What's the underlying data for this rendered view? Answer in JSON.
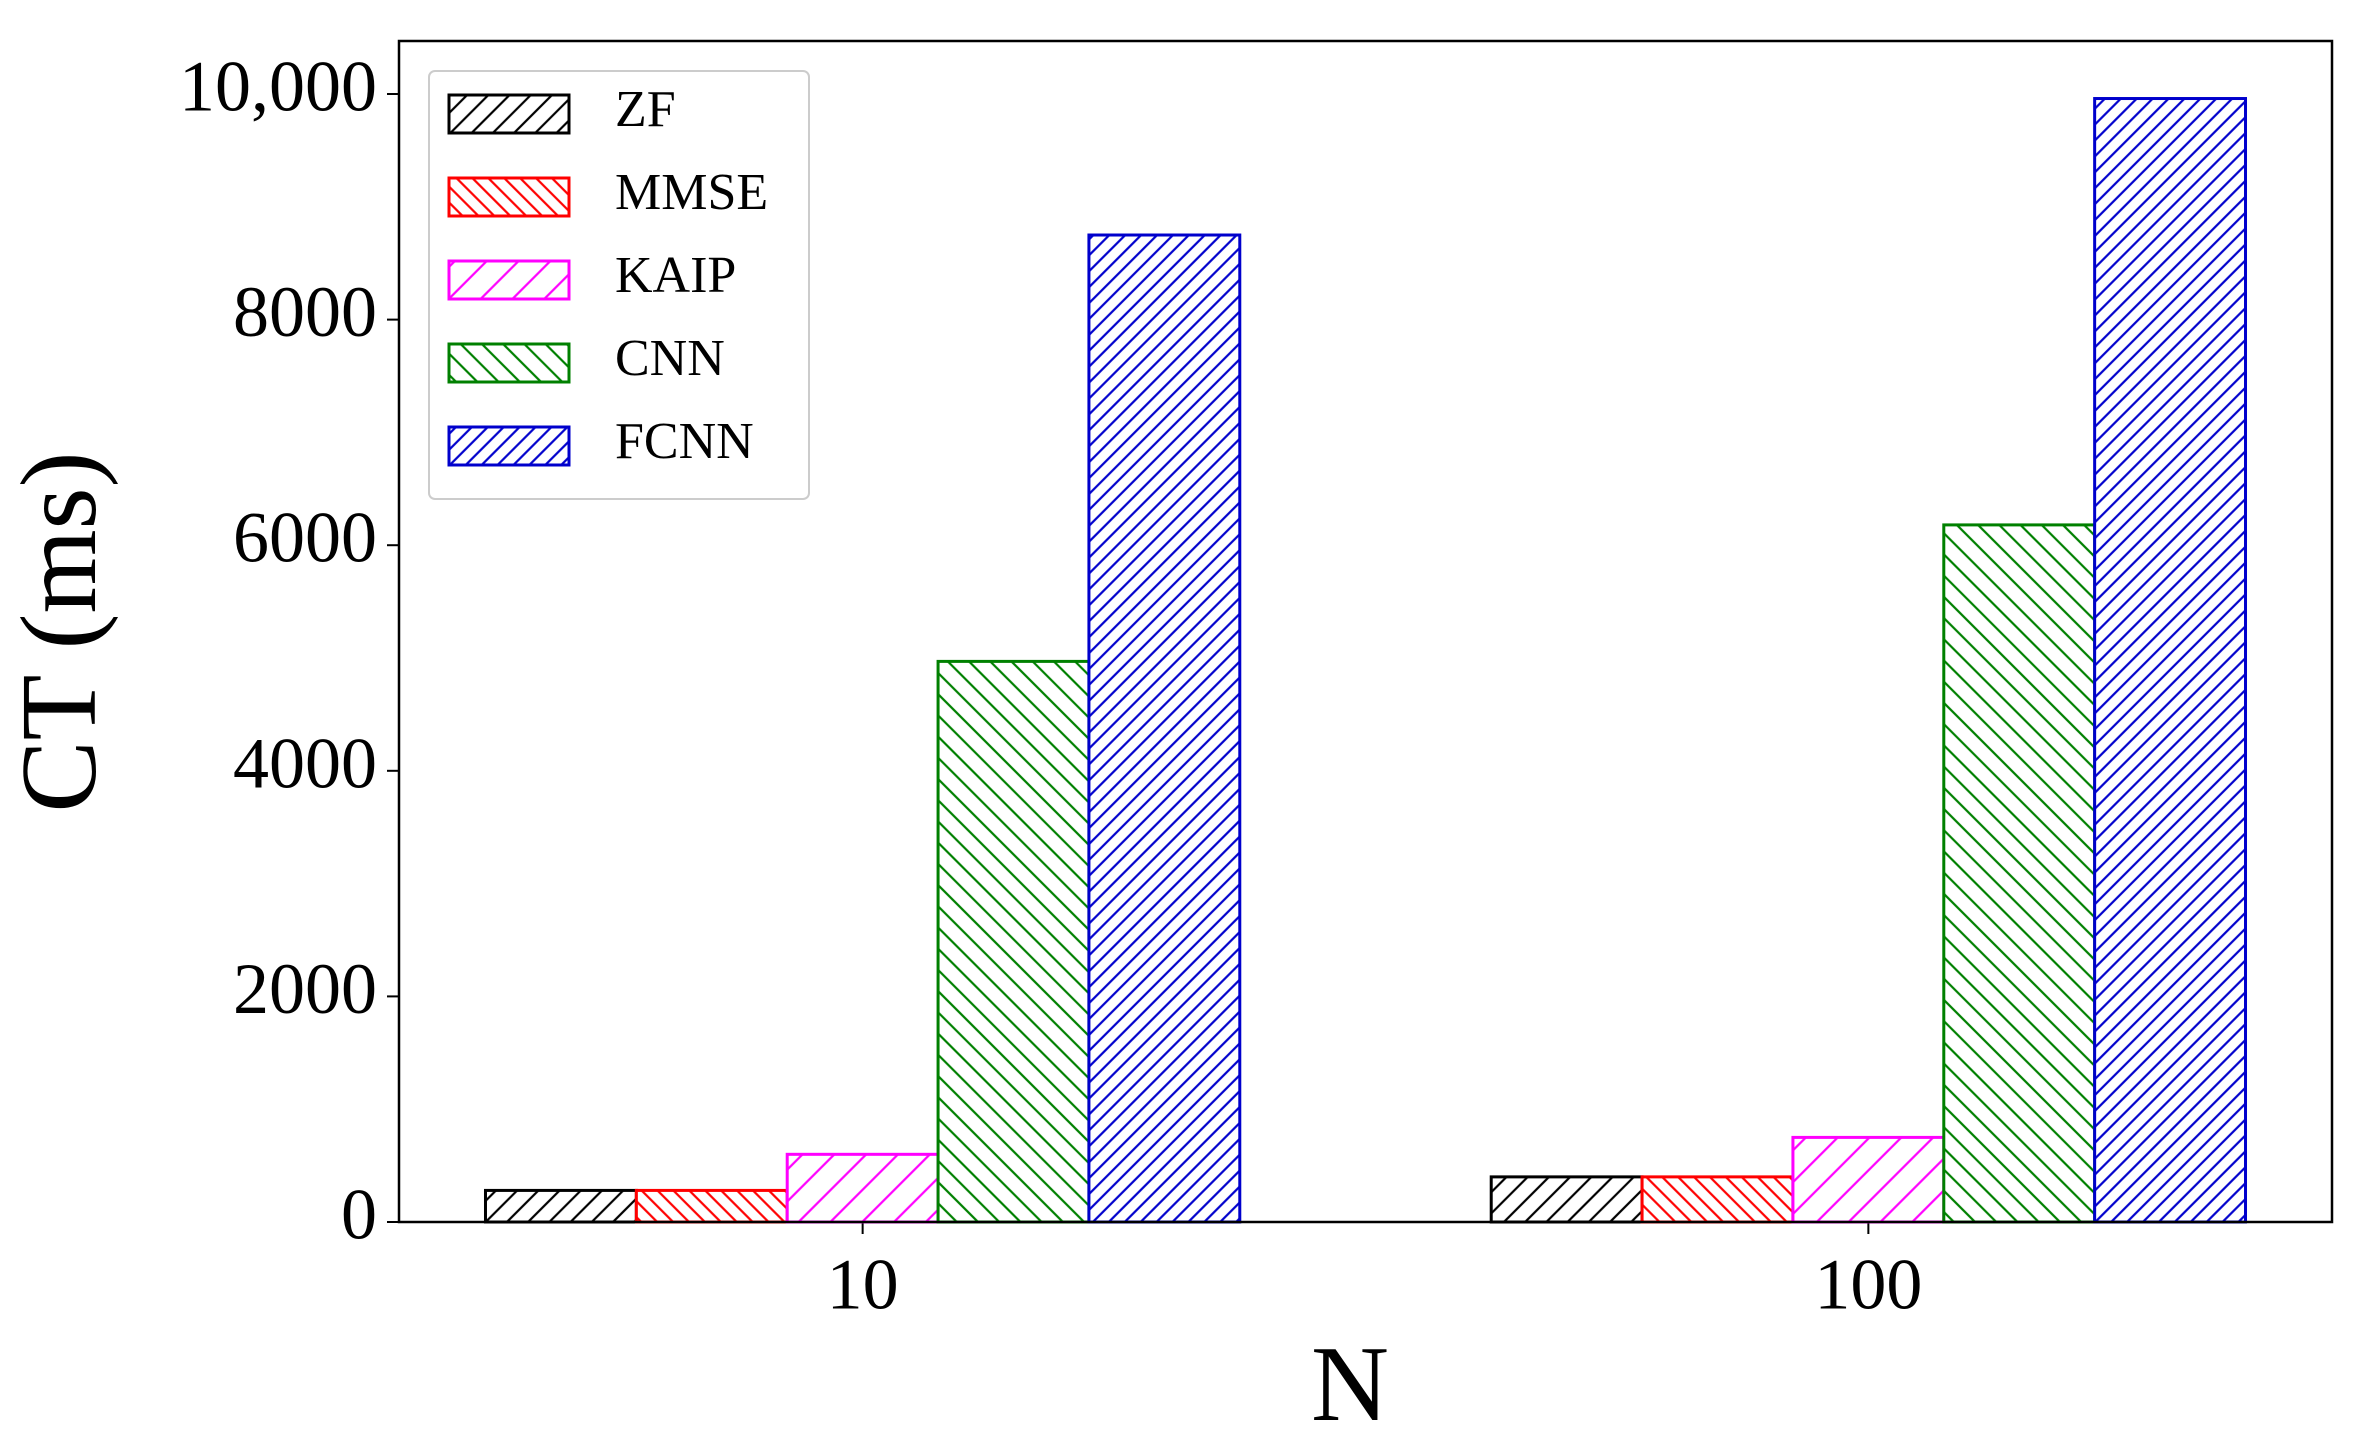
{
  "chart_data": {
    "type": "bar",
    "xlabel": "N",
    "ylabel": "CT (ms)",
    "categories": [
      "10",
      "100"
    ],
    "series": [
      {
        "name": "ZF",
        "color": "#000000",
        "hatch": "///",
        "values": [
          280,
          400
        ]
      },
      {
        "name": "MMSE",
        "color": "#ff0000",
        "hatch": "\\\\\\\\",
        "values": [
          280,
          400
        ]
      },
      {
        "name": "KAIP",
        "color": "#ff00ff",
        "hatch": "//",
        "values": [
          600,
          750
        ]
      },
      {
        "name": "CNN",
        "color": "#008000",
        "hatch": "\\\\\\",
        "values": [
          4970,
          6180
        ]
      },
      {
        "name": "FCNN",
        "color": "#0000cc",
        "hatch": "////",
        "values": [
          8750,
          9960
        ]
      }
    ],
    "ylim": [
      0,
      10470
    ],
    "yticks": [
      0,
      2000,
      4000,
      6000,
      8000,
      {
        "value": 10000,
        "label": "10,000"
      }
    ],
    "legend": "upper left"
  }
}
